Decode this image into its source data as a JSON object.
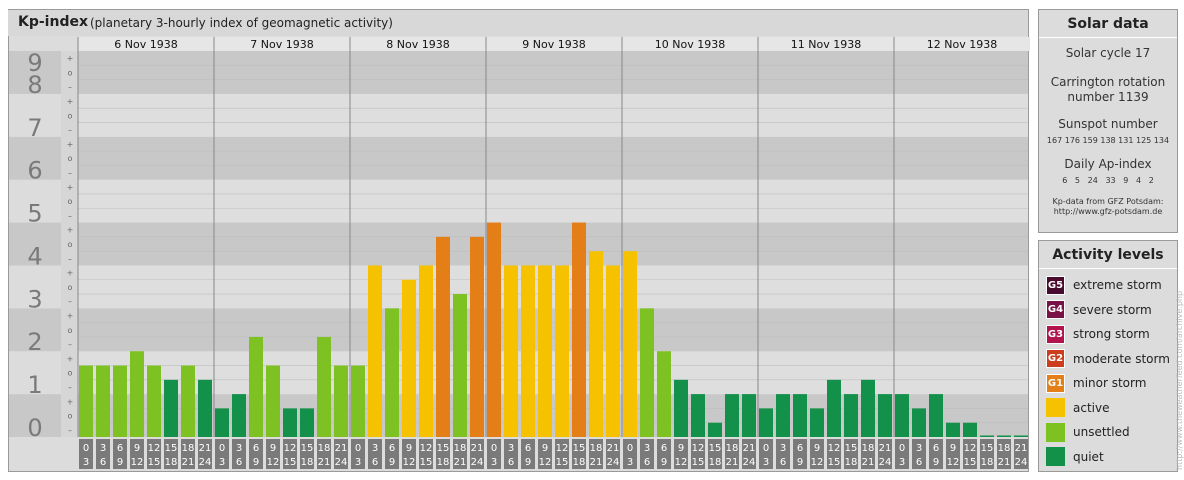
{
  "header": {
    "title": "Kp-index",
    "subtitle": "(planetary 3-hourly index of geomagnetic activity)"
  },
  "chart_data": {
    "type": "bar",
    "ylim": [
      0,
      9
    ],
    "y_ticks": [
      "0",
      "1",
      "2",
      "3",
      "4",
      "5",
      "6",
      "7",
      "8",
      "9"
    ],
    "minor_tick_labels": [
      "–",
      "o",
      "+"
    ],
    "days": [
      "6 Nov 1938",
      "7 Nov 1938",
      "8 Nov 1938",
      "9 Nov 1938",
      "10 Nov 1938",
      "11 Nov 1938",
      "12 Nov 1938"
    ],
    "interval_labels": [
      [
        "0",
        "3"
      ],
      [
        "3",
        "6"
      ],
      [
        "6",
        "9"
      ],
      [
        "9",
        "12"
      ],
      [
        "12",
        "15"
      ],
      [
        "15",
        "18"
      ],
      [
        "18",
        "21"
      ],
      [
        "21",
        "24"
      ]
    ],
    "values": [
      [
        1.667,
        1.667,
        1.667,
        2.0,
        1.667,
        1.333,
        1.667,
        1.333
      ],
      [
        0.667,
        1.0,
        2.333,
        1.667,
        0.667,
        0.667,
        2.333,
        1.667
      ],
      [
        1.667,
        4.0,
        3.0,
        3.667,
        4.0,
        4.667,
        3.333,
        4.667
      ],
      [
        5.0,
        4.0,
        4.0,
        4.0,
        4.0,
        5.0,
        4.333,
        4.0
      ],
      [
        4.333,
        3.0,
        2.0,
        1.333,
        1.0,
        0.333,
        1.0,
        1.0
      ],
      [
        0.667,
        1.0,
        1.0,
        0.667,
        1.333,
        1.0,
        1.333,
        1.0
      ],
      [
        1.0,
        0.667,
        1.0,
        0.333,
        0.333,
        0.0,
        0.0,
        0.0
      ]
    ],
    "level_colors": {
      "quiet": "#13914a",
      "unsettled": "#7dc123",
      "active": "#f6c200",
      "minor": "#e47e16",
      "moderate": "#cc3d1e",
      "strong": "#b0134e",
      "severe": "#7a1248",
      "extreme": "#4a0a2e"
    }
  },
  "solar": {
    "title": "Solar data",
    "cycle": "Solar cycle 17",
    "carrington_line1": "Carrington rotation",
    "carrington_line2": "number 1139",
    "sunspot_label": "Sunspot number",
    "sunspot_values": "167 176 159 138 131 125 134",
    "ap_label": "Daily Ap-index",
    "ap_values": "6   5   24   33   9   4   2",
    "source_line1": "Kp-data from GFZ Potsdam:",
    "source_line2": "http://www.gfz-potsdam.de"
  },
  "activity": {
    "title": "Activity levels",
    "items": [
      {
        "badge": "G5",
        "label": "extreme storm",
        "color": "#4a0a2e"
      },
      {
        "badge": "G4",
        "label": "severe storm",
        "color": "#7a1248"
      },
      {
        "badge": "G3",
        "label": "strong storm",
        "color": "#b0134e"
      },
      {
        "badge": "G2",
        "label": "moderate storm",
        "color": "#cc3d1e"
      },
      {
        "badge": "G1",
        "label": "minor storm",
        "color": "#e47e16"
      },
      {
        "badge": "",
        "label": "active",
        "color": "#f6c200"
      },
      {
        "badge": "",
        "label": "unsettled",
        "color": "#7dc123"
      },
      {
        "badge": "",
        "label": "quiet",
        "color": "#13914a"
      }
    ]
  },
  "watermark": "http://www.theweatherfeed.com/archive.php"
}
